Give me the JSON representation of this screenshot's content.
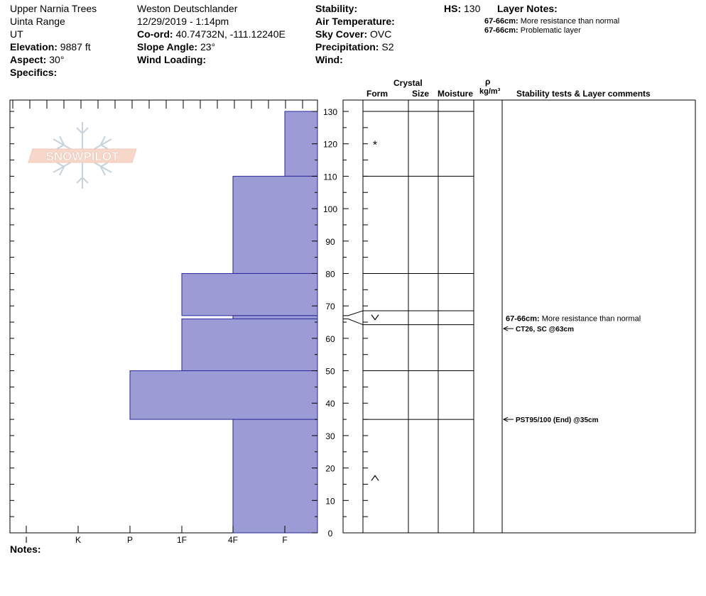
{
  "header": {
    "location": "Upper Narnia Trees",
    "range": "Uinta Range",
    "state": "UT",
    "elevation_label": "Elevation:",
    "elevation_value": "9887 ft",
    "aspect_label": "Aspect:",
    "aspect_value": "30°",
    "specifics_label": "Specifics:",
    "observer": "Weston Deutschlander",
    "datetime": "12/29/2019 - 1:14pm",
    "coord_label": "Co-ord:",
    "coord_value": "40.74732N, -111.12240E",
    "slope_label": "Slope Angle:",
    "slope_value": "23°",
    "wind_loading_label": "Wind Loading:",
    "stability_label": "Stability:",
    "air_temp_label": "Air Temperature:",
    "sky_label": "Sky Cover:",
    "sky_value": "OVC",
    "precip_label": "Precipitation:",
    "precip_value": "S2",
    "wind_label": "Wind:",
    "hs_label": "HS:",
    "hs_value": "130",
    "layer_notes_label": "Layer Notes:",
    "layer_notes": [
      {
        "range": "67-66cm:",
        "text": "More resistance than normal"
      },
      {
        "range": "67-66cm:",
        "text": "Problematic layer"
      }
    ],
    "notes_label": "Notes:",
    "logo_text": "SNOWPILOT"
  },
  "columns": {
    "crystal": "Crystal",
    "form": "Form",
    "size": "Size",
    "moisture": "Moisture",
    "rho": "ρ",
    "density_unit": "kg/m³",
    "stability": "Stability tests & Layer comments"
  },
  "chart_data": {
    "type": "bar",
    "orientation": "horizontal",
    "x_axis": {
      "categories": [
        "I",
        "K",
        "P",
        "1F",
        "4F",
        "F"
      ],
      "direction": "hardness decreasing left to right"
    },
    "y_axis": {
      "range": [
        0,
        130
      ],
      "ticks": [
        0,
        10,
        20,
        30,
        40,
        50,
        60,
        70,
        80,
        90,
        100,
        110,
        120,
        130
      ]
    },
    "hardness_positions": {
      "I": 0,
      "K": 1,
      "P": 2,
      "1F": 3,
      "4F": 4,
      "F": 5
    },
    "layers": [
      {
        "top": 130,
        "bottom": 110,
        "hardness": "F",
        "form": "*"
      },
      {
        "top": 110,
        "bottom": 80,
        "hardness": "4F",
        "form": ""
      },
      {
        "top": 80,
        "bottom": 67,
        "hardness": "1F",
        "form": ""
      },
      {
        "top": 67,
        "bottom": 66,
        "hardness": "4F",
        "form": "v"
      },
      {
        "top": 66,
        "bottom": 50,
        "hardness": "1F",
        "form": ""
      },
      {
        "top": 50,
        "bottom": 35,
        "hardness": "P",
        "form": ""
      },
      {
        "top": 35,
        "bottom": 0,
        "hardness": "4F",
        "form": "^"
      }
    ],
    "bar_color": "#9b9bd6",
    "bar_stroke": "#2a2a9a",
    "comments": [
      {
        "depth": 66,
        "label": "67-66cm:",
        "text": "More resistance than normal"
      },
      {
        "depth": 63,
        "text": "CT26, SC @63cm",
        "arrow": true
      },
      {
        "depth": 35,
        "text": "PST95/100 (End) @35cm",
        "arrow": true
      }
    ]
  }
}
